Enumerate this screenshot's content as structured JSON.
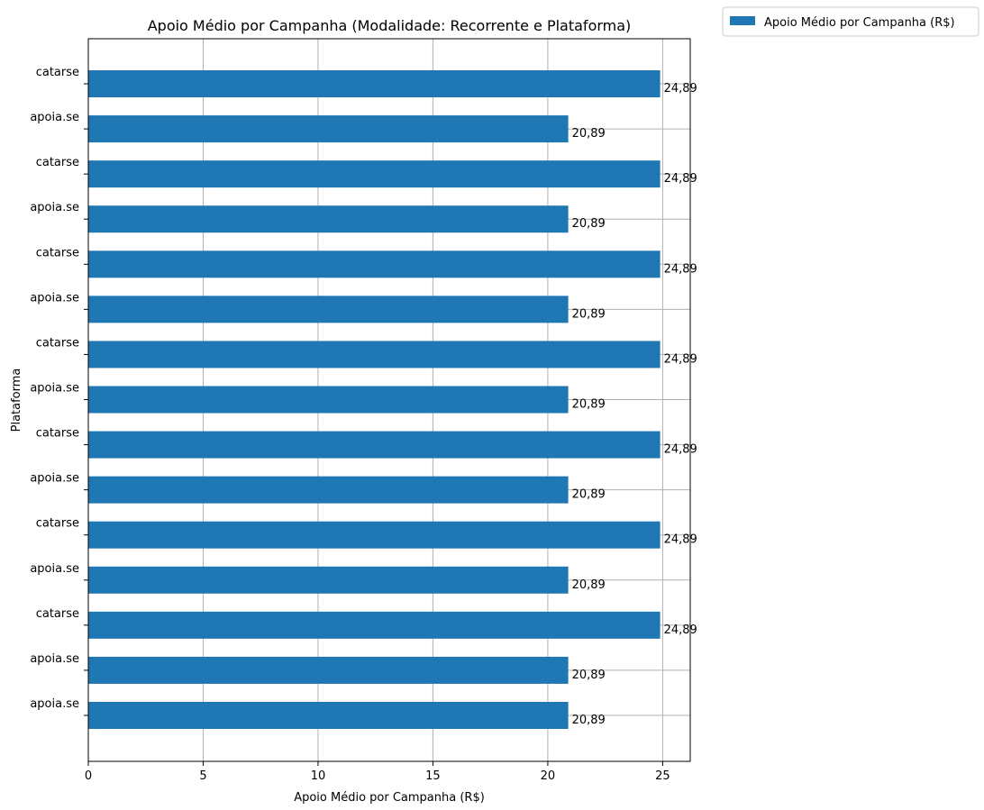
{
  "chart_data": {
    "type": "bar",
    "orientation": "horizontal",
    "title": "Apoio Médio por Campanha (Modalidade: Recorrente e Plataforma)",
    "xlabel": "Apoio Médio por Campanha (R$)",
    "ylabel": "Plataforma",
    "xlim": [
      0,
      26.2
    ],
    "xticks": [
      0,
      5,
      10,
      15,
      20,
      25
    ],
    "grid": true,
    "legend_position": "outside-top-right",
    "categories": [
      "catarse",
      "apoia.se",
      "catarse",
      "apoia.se",
      "catarse",
      "apoia.se",
      "catarse",
      "apoia.se",
      "catarse",
      "apoia.se",
      "catarse",
      "apoia.se",
      "catarse",
      "apoia.se",
      "apoia.se"
    ],
    "series": [
      {
        "name": "Apoio Médio por Campanha (R$)",
        "color": "#1f77b4",
        "values": [
          24.89,
          20.89,
          24.89,
          20.89,
          24.89,
          20.89,
          24.89,
          20.89,
          24.89,
          20.89,
          24.89,
          20.89,
          24.89,
          20.89,
          20.89
        ],
        "labels": [
          "24,89",
          "20,89",
          "24,89",
          "20,89",
          "24,89",
          "20,89",
          "24,89",
          "20,89",
          "24,89",
          "20,89",
          "24,89",
          "20,89",
          "24,89",
          "20,89",
          "20,89"
        ]
      }
    ]
  }
}
